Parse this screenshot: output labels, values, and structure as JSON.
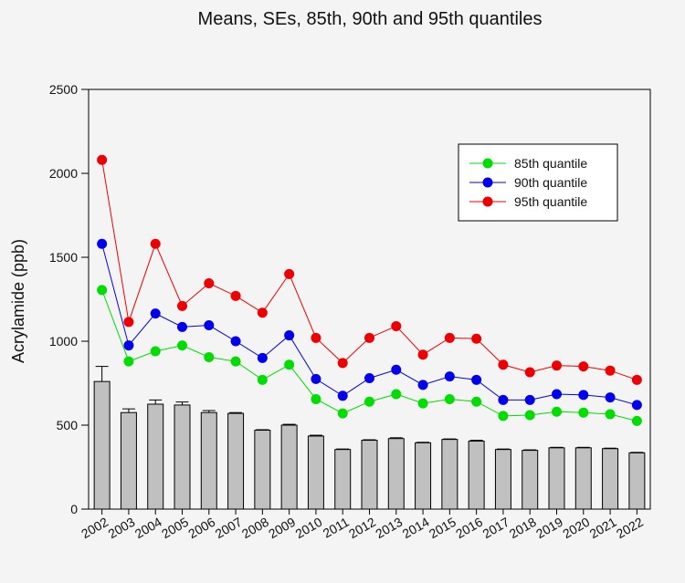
{
  "chart_data": {
    "type": "bar+line",
    "title": "Means, SEs, 85th, 90th and 95th quantiles",
    "xlabel": "",
    "ylabel": "Acrylamide (ppb)",
    "ylim": [
      0,
      2500
    ],
    "yticks": [
      0,
      500,
      1000,
      1500,
      2000,
      2500
    ],
    "grid": false,
    "legend_position": "top-right",
    "categories": [
      "2002",
      "2003",
      "2004",
      "2005",
      "2006",
      "2007",
      "2008",
      "2009",
      "2010",
      "2011",
      "2012",
      "2013",
      "2014",
      "2015",
      "2016",
      "2017",
      "2018",
      "2019",
      "2020",
      "2021",
      "2022"
    ],
    "bars": {
      "name": "",
      "color": "#c0c0c0",
      "values": [
        760,
        575,
        625,
        620,
        575,
        570,
        470,
        500,
        435,
        355,
        410,
        420,
        395,
        415,
        405,
        355,
        350,
        365,
        365,
        360,
        335
      ],
      "se": [
        90,
        22,
        25,
        18,
        12,
        5,
        3,
        5,
        5,
        3,
        3,
        5,
        3,
        3,
        5,
        3,
        3,
        3,
        3,
        3,
        3
      ]
    },
    "series": [
      {
        "name": "85th quantile",
        "color": "#00dd00",
        "values": [
          1305,
          880,
          940,
          975,
          905,
          880,
          770,
          860,
          655,
          570,
          640,
          685,
          630,
          655,
          640,
          555,
          560,
          580,
          575,
          565,
          525
        ]
      },
      {
        "name": "90th quantile",
        "color": "#0000ee",
        "values": [
          1580,
          975,
          1165,
          1085,
          1095,
          1000,
          900,
          1035,
          775,
          675,
          780,
          830,
          740,
          790,
          770,
          650,
          650,
          685,
          680,
          665,
          620
        ]
      },
      {
        "name": "95th quantile",
        "color": "#ee0000",
        "values": [
          2080,
          1115,
          1580,
          1210,
          1345,
          1270,
          1170,
          1400,
          1020,
          870,
          1020,
          1090,
          920,
          1020,
          1015,
          860,
          815,
          855,
          850,
          825,
          770
        ]
      }
    ]
  }
}
